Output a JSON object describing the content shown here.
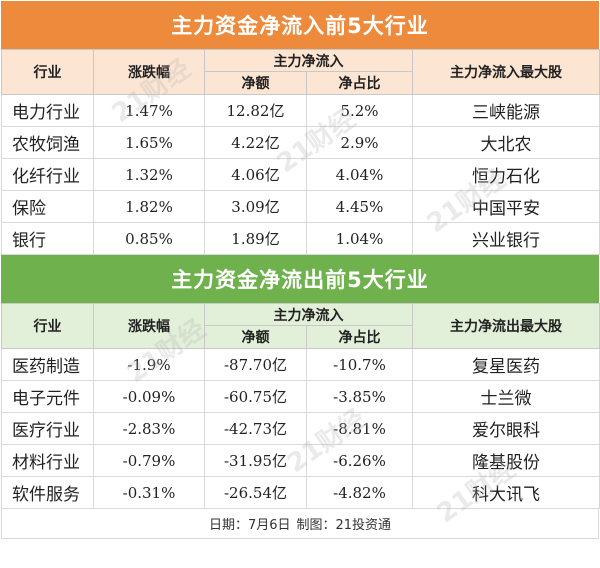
{
  "inflow": {
    "title": "主力资金净流入前5大行业",
    "headers": {
      "industry": "行业",
      "change": "涨跌幅",
      "group": "主力净流入",
      "net": "净额",
      "ratio": "净占比",
      "top_stock": "主力净流入最大股"
    },
    "rows": [
      {
        "industry": "电力行业",
        "change": "1.47%",
        "net": "12.82亿",
        "ratio": "5.2%",
        "stock": "三峡能源"
      },
      {
        "industry": "农牧饲渔",
        "change": "1.65%",
        "net": "4.22亿",
        "ratio": "2.9%",
        "stock": "大北农"
      },
      {
        "industry": "化纤行业",
        "change": "1.32%",
        "net": "4.06亿",
        "ratio": "4.04%",
        "stock": "恒力石化"
      },
      {
        "industry": "保险",
        "change": "1.82%",
        "net": "3.09亿",
        "ratio": "4.45%",
        "stock": "中国平安"
      },
      {
        "industry": "银行",
        "change": "0.85%",
        "net": "1.89亿",
        "ratio": "1.04%",
        "stock": "兴业银行"
      }
    ]
  },
  "outflow": {
    "title": "主力资金净流出前5大行业",
    "headers": {
      "industry": "行业",
      "change": "涨跌幅",
      "group": "主力净流入",
      "net": "净额",
      "ratio": "净占比",
      "top_stock": "主力净流出最大股"
    },
    "rows": [
      {
        "industry": "医药制造",
        "change": "-1.9%",
        "net": "-87.70亿",
        "ratio": "-10.7%",
        "stock": "复星医药"
      },
      {
        "industry": "电子元件",
        "change": "-0.09%",
        "net": "-60.75亿",
        "ratio": "-3.85%",
        "stock": "士兰微"
      },
      {
        "industry": "医疗行业",
        "change": "-2.83%",
        "net": "-42.73亿",
        "ratio": "-8.81%",
        "stock": "爱尔眼科"
      },
      {
        "industry": "材料行业",
        "change": "-0.79%",
        "net": "-31.95亿",
        "ratio": "-6.26%",
        "stock": "隆基股份"
      },
      {
        "industry": "软件服务",
        "change": "-0.31%",
        "net": "-26.54亿",
        "ratio": "-4.82%",
        "stock": "科大讯飞"
      }
    ]
  },
  "footer": {
    "date": "日期：7月6日",
    "source": "制图：21投资通"
  },
  "watermark": "21财经",
  "colors": {
    "inflow_banner": "#ee8a3c",
    "inflow_header": "#fce6d3",
    "outflow_banner": "#6fb24d",
    "outflow_header": "#e2f0d9"
  }
}
